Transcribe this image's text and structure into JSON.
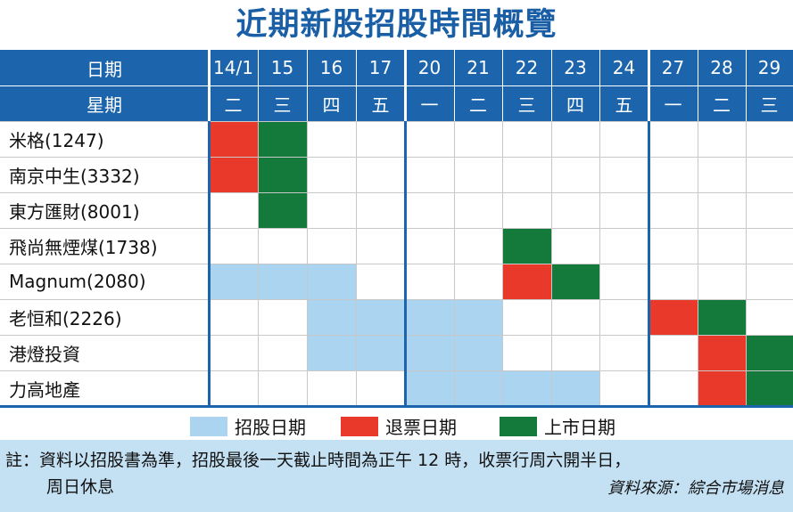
{
  "title": "近期新股招股時間概覽",
  "header": {
    "date_label": "日期",
    "weekday_label": "星期",
    "dates": [
      "14/1",
      "15",
      "16",
      "17",
      "20",
      "21",
      "22",
      "23",
      "24",
      "27",
      "28",
      "29"
    ],
    "weekdays": [
      "二",
      "三",
      "四",
      "五",
      "一",
      "二",
      "三",
      "四",
      "五",
      "一",
      "二",
      "三"
    ]
  },
  "colors": {
    "header_bg": "#1c64ab",
    "subscription": "#aad4ef",
    "refund": "#e8392a",
    "listing": "#137a3c",
    "note_bg": "#c4e0f3"
  },
  "rows": [
    {
      "label": "米格(1247)",
      "cells": [
        "R",
        "G",
        "",
        "",
        "",
        "",
        "",
        "",
        "",
        "",
        "",
        ""
      ]
    },
    {
      "label": "南京中生(3332)",
      "cells": [
        "R",
        "G",
        "",
        "",
        "",
        "",
        "",
        "",
        "",
        "",
        "",
        ""
      ]
    },
    {
      "label": "東方匯財(8001)",
      "cells": [
        "",
        "G",
        "",
        "",
        "",
        "",
        "",
        "",
        "",
        "",
        "",
        ""
      ]
    },
    {
      "label": "飛尚無煙煤(1738)",
      "cells": [
        "",
        "",
        "",
        "",
        "",
        "",
        "G",
        "",
        "",
        "",
        "",
        ""
      ]
    },
    {
      "label": "Magnum(2080)",
      "cells": [
        "B",
        "B",
        "B",
        "",
        "",
        "",
        "R",
        "G",
        "",
        "",
        "",
        ""
      ]
    },
    {
      "label": "老恒和(2226)",
      "cells": [
        "",
        "",
        "B",
        "B",
        "B",
        "B",
        "",
        "",
        "",
        "R",
        "G",
        ""
      ]
    },
    {
      "label": "港燈投資",
      "cells": [
        "",
        "",
        "B",
        "B",
        "B",
        "B",
        "",
        "",
        "",
        "",
        "R",
        "G"
      ]
    },
    {
      "label": "力高地產",
      "cells": [
        "",
        "",
        "",
        "",
        "B",
        "B",
        "B",
        "B",
        "",
        "",
        "R",
        "G"
      ]
    }
  ],
  "legend": [
    {
      "code": "B",
      "label": "招股日期"
    },
    {
      "code": "R",
      "label": "退票日期"
    },
    {
      "code": "G",
      "label": "上市日期"
    }
  ],
  "note": {
    "line1": "註：資料以招股書為準，招股最後一天截止時間為正午 12 時，收票行周六開半日，",
    "line2": "周日休息",
    "source": "資料來源：綜合市場消息"
  }
}
